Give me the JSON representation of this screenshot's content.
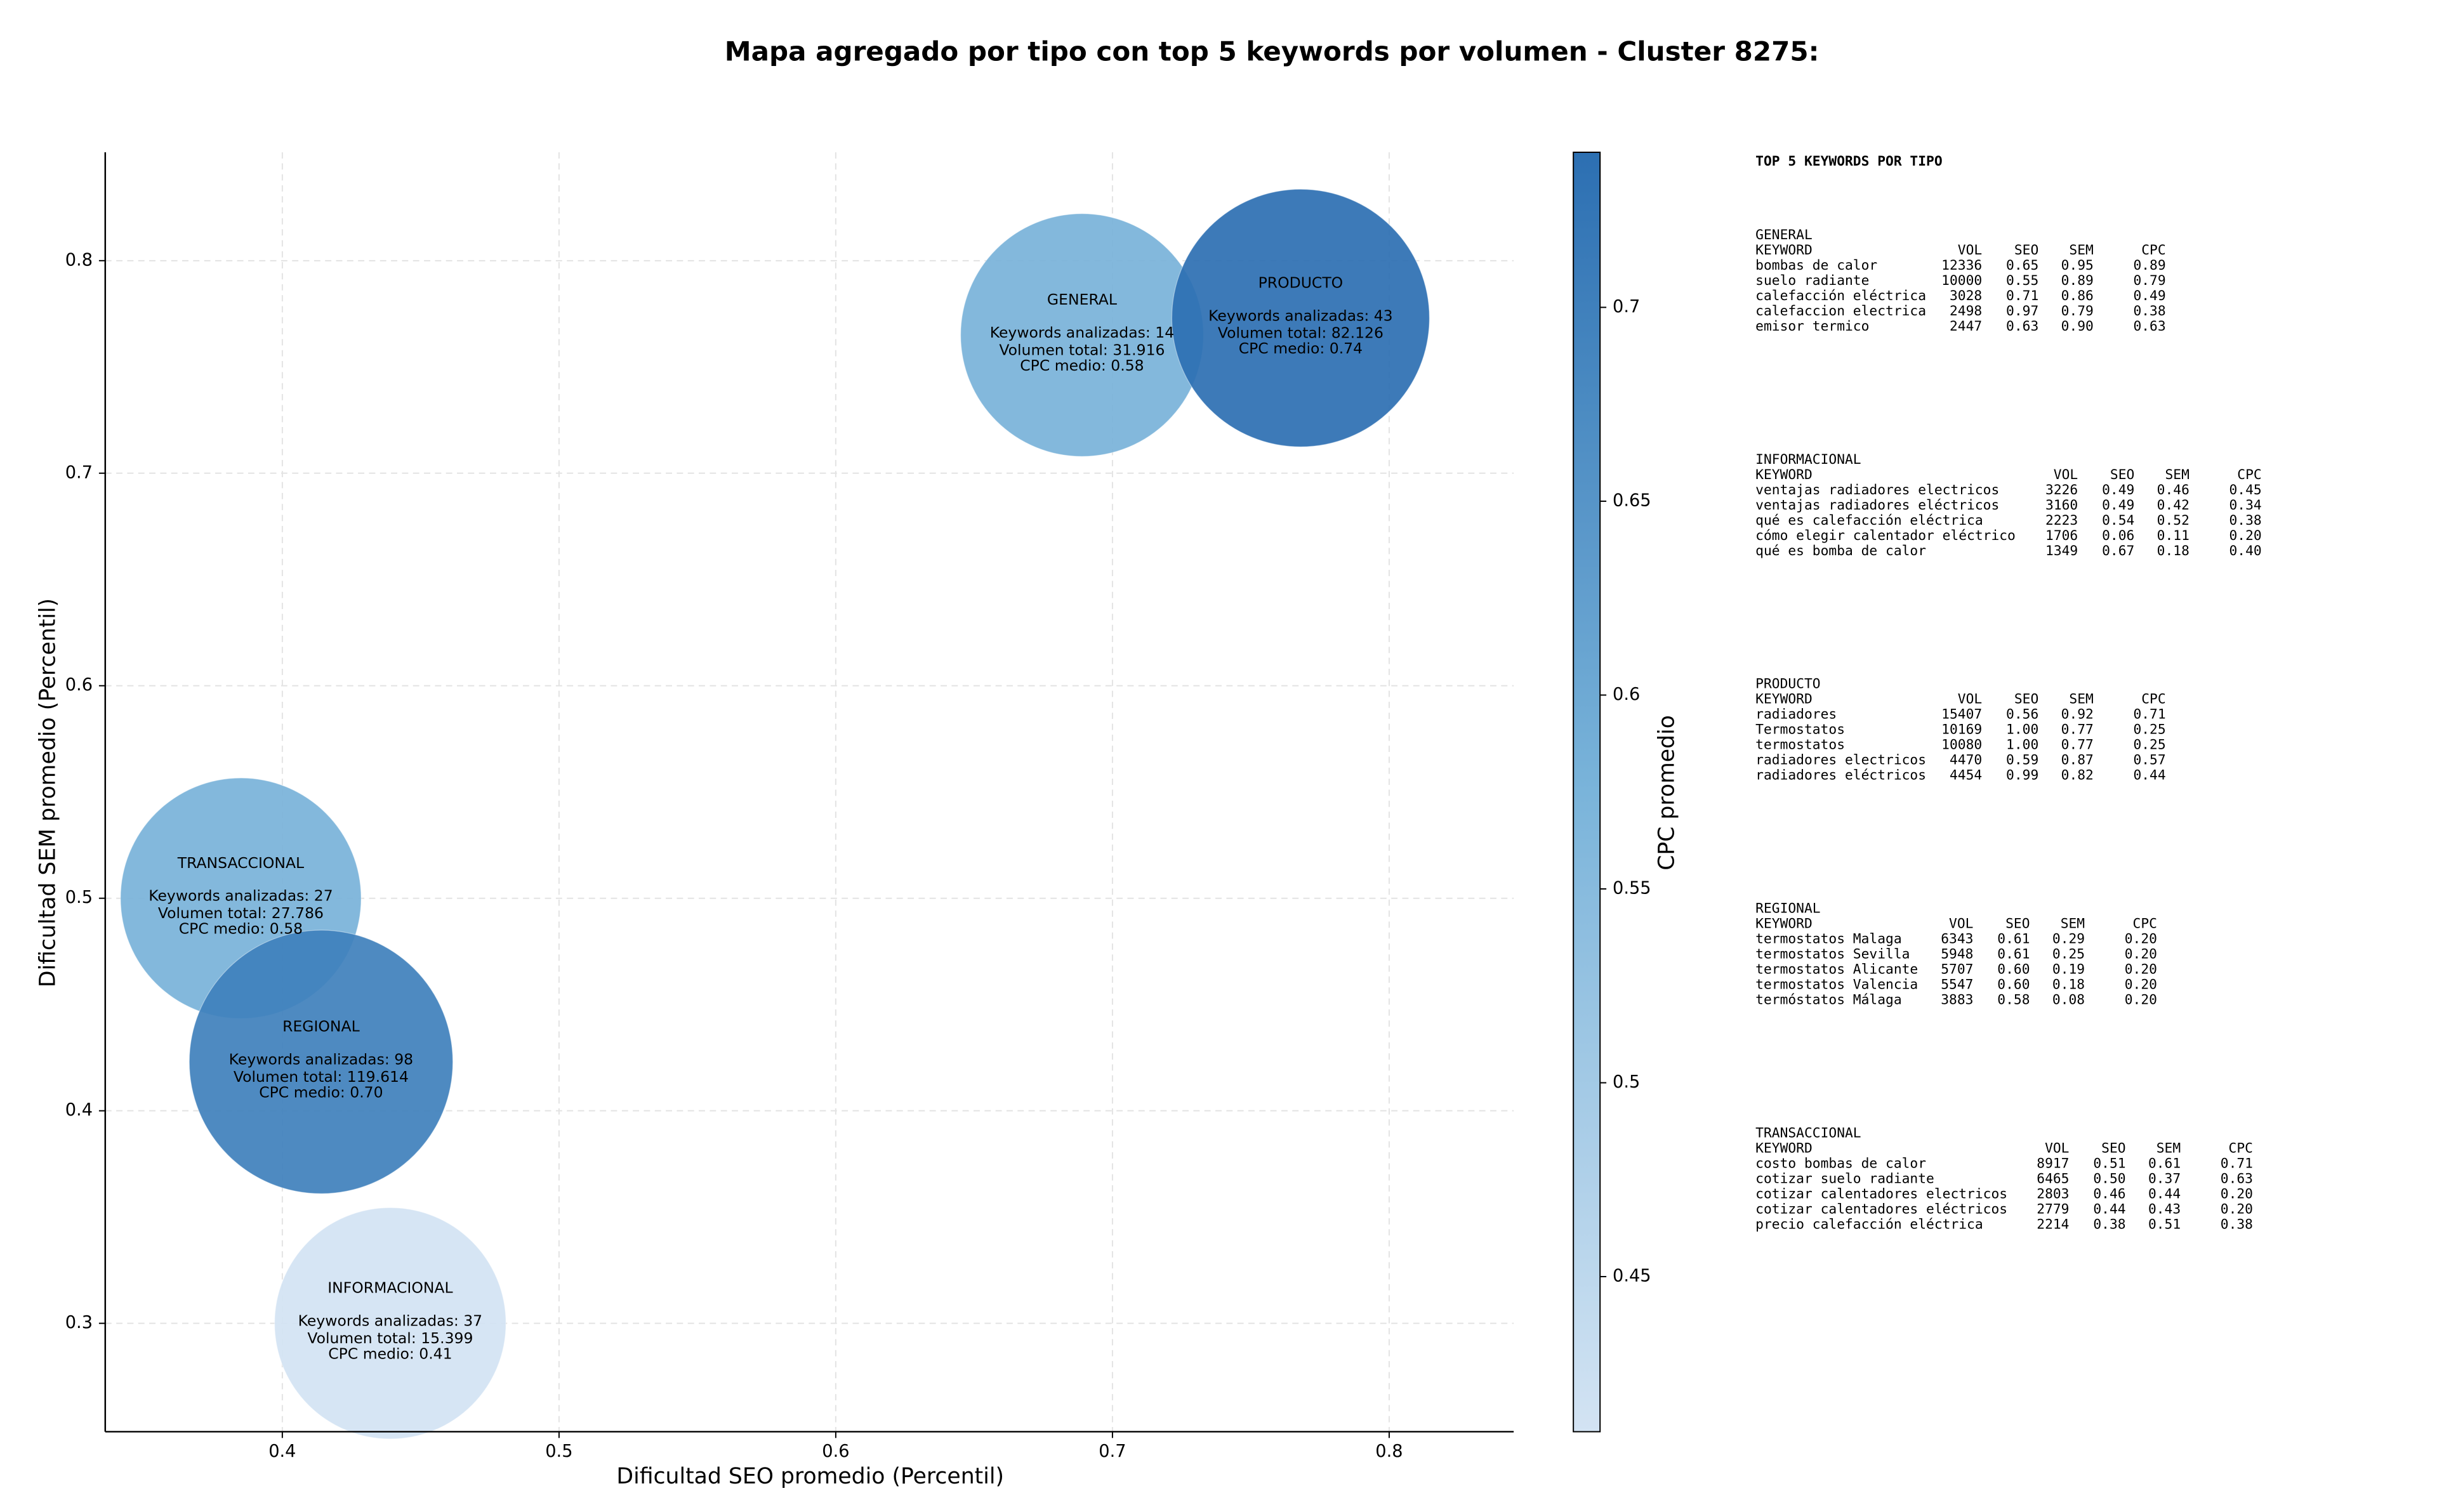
{
  "chart_data": {
    "type": "scatter",
    "title": "Mapa agregado por tipo con top 5 keywords por volumen - Cluster 8275:",
    "xlabel": "Dificultad SEO promedio (Percentil)",
    "ylabel": "Dificultad SEM promedio (Percentil)",
    "xlim": [
      0.336,
      0.845
    ],
    "ylim": [
      0.249,
      0.851
    ],
    "xticks": [
      0.4,
      0.5,
      0.6,
      0.7,
      0.8
    ],
    "yticks": [
      0.3,
      0.4,
      0.5,
      0.6,
      0.7,
      0.8
    ],
    "grid": true,
    "colorbar": {
      "label": "CPC promedio",
      "clim": [
        0.41,
        0.74
      ],
      "ticks": [
        0.45,
        0.5,
        0.55,
        0.6,
        0.65,
        0.7
      ]
    },
    "points": [
      {
        "name": "GENERAL",
        "x": 0.689,
        "y": 0.765,
        "keywords": 14,
        "keywords_label": "Keywords analizadas: 14",
        "volume": 31916,
        "volume_label": "Volumen total: 31.916",
        "cpc": 0.58,
        "cpc_label": "CPC medio: 0.58"
      },
      {
        "name": "INFORMACIONAL",
        "x": 0.439,
        "y": 0.3,
        "keywords": 37,
        "keywords_label": "Keywords analizadas: 37",
        "volume": 15399,
        "volume_label": "Volumen total: 15.399",
        "cpc": 0.41,
        "cpc_label": "CPC medio: 0.41"
      },
      {
        "name": "PRODUCTO",
        "x": 0.768,
        "y": 0.773,
        "keywords": 43,
        "keywords_label": "Keywords analizadas: 43",
        "volume": 82126,
        "volume_label": "Volumen total: 82.126",
        "cpc": 0.74,
        "cpc_label": "CPC medio: 0.74"
      },
      {
        "name": "TRANSACCIONAL",
        "x": 0.385,
        "y": 0.5,
        "keywords": 27,
        "keywords_label": "Keywords analizadas: 27",
        "volume": 27786,
        "volume_label": "Volumen total: 27.786",
        "cpc": 0.58,
        "cpc_label": "CPC medio: 0.58"
      },
      {
        "name": "REGIONAL",
        "x": 0.414,
        "y": 0.423,
        "keywords": 98,
        "keywords_label": "Keywords analizadas: 98",
        "volume": 119614,
        "volume_label": "Volumen total: 119.614",
        "cpc": 0.7,
        "cpc_label": "CPC medio: 0.70"
      }
    ],
    "side_panel": {
      "title": "TOP 5 KEYWORDS POR TIPO",
      "groups": [
        {
          "name": "GENERAL",
          "header": [
            "KEYWORD",
            "VOL",
            "SEO",
            "SEM",
            "CPC"
          ],
          "rows": [
            [
              "bombas de calor",
              "12336",
              "0.65",
              "0.95",
              "0.89"
            ],
            [
              "suelo radiante",
              "10000",
              "0.55",
              "0.89",
              "0.79"
            ],
            [
              "calefacción eléctrica",
              "3028",
              "0.71",
              "0.86",
              "0.49"
            ],
            [
              "calefaccion electrica",
              "2498",
              "0.97",
              "0.79",
              "0.38"
            ],
            [
              "emisor termico",
              "2447",
              "0.63",
              "0.90",
              "0.63"
            ]
          ]
        },
        {
          "name": "INFORMACIONAL",
          "header": [
            "KEYWORD",
            "VOL",
            "SEO",
            "SEM",
            "CPC"
          ],
          "rows": [
            [
              "ventajas radiadores electricos",
              "3226",
              "0.49",
              "0.46",
              "0.45"
            ],
            [
              "ventajas radiadores eléctricos",
              "3160",
              "0.49",
              "0.42",
              "0.34"
            ],
            [
              "qué es calefacción eléctrica",
              "2223",
              "0.54",
              "0.52",
              "0.38"
            ],
            [
              "cómo elegir calentador eléctrico",
              "1706",
              "0.06",
              "0.11",
              "0.20"
            ],
            [
              "qué es bomba de calor",
              "1349",
              "0.67",
              "0.18",
              "0.40"
            ]
          ]
        },
        {
          "name": "PRODUCTO",
          "header": [
            "KEYWORD",
            "VOL",
            "SEO",
            "SEM",
            "CPC"
          ],
          "rows": [
            [
              "radiadores",
              "15407",
              "0.56",
              "0.92",
              "0.71"
            ],
            [
              "Termostatos",
              "10169",
              "1.00",
              "0.77",
              "0.25"
            ],
            [
              "termostatos",
              "10080",
              "1.00",
              "0.77",
              "0.25"
            ],
            [
              "radiadores electricos",
              "4470",
              "0.59",
              "0.87",
              "0.57"
            ],
            [
              "radiadores eléctricos",
              "4454",
              "0.99",
              "0.82",
              "0.44"
            ]
          ]
        },
        {
          "name": "REGIONAL",
          "header": [
            "KEYWORD",
            "VOL",
            "SEO",
            "SEM",
            "CPC"
          ],
          "rows": [
            [
              "termostatos Malaga",
              "6343",
              "0.61",
              "0.29",
              "0.20"
            ],
            [
              "termostatos Sevilla",
              "5948",
              "0.61",
              "0.25",
              "0.20"
            ],
            [
              "termostatos Alicante",
              "5707",
              "0.60",
              "0.19",
              "0.20"
            ],
            [
              "termostatos Valencia",
              "5547",
              "0.60",
              "0.18",
              "0.20"
            ],
            [
              "termóstatos Málaga",
              "3883",
              "0.58",
              "0.08",
              "0.20"
            ]
          ]
        },
        {
          "name": "TRANSACCIONAL",
          "header": [
            "KEYWORD",
            "VOL",
            "SEO",
            "SEM",
            "CPC"
          ],
          "rows": [
            [
              "costo bombas de calor",
              "8917",
              "0.51",
              "0.61",
              "0.71"
            ],
            [
              "cotizar suelo radiante",
              "6465",
              "0.50",
              "0.37",
              "0.63"
            ],
            [
              "cotizar calentadores electricos",
              "2803",
              "0.46",
              "0.44",
              "0.20"
            ],
            [
              "cotizar calentadores eléctricos",
              "2779",
              "0.44",
              "0.43",
              "0.20"
            ],
            [
              "precio calefacción eléctrica",
              "2214",
              "0.38",
              "0.51",
              "0.38"
            ]
          ]
        }
      ]
    }
  }
}
